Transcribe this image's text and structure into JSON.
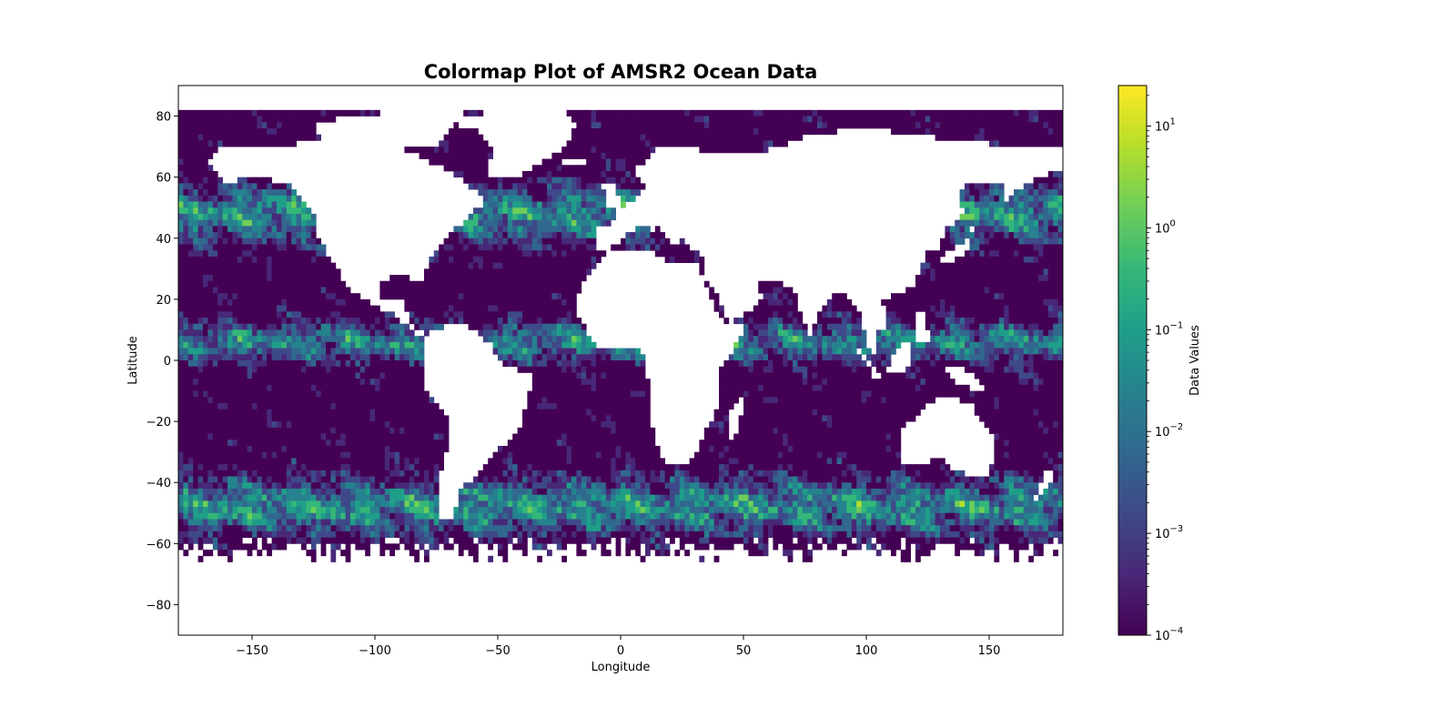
{
  "chart_data": {
    "type": "heatmap",
    "title": "Colormap Plot of AMSR2 Ocean Data",
    "xlabel": "Longitude",
    "ylabel": "Latitude",
    "xlim": [
      -180,
      180
    ],
    "ylim": [
      -90,
      90
    ],
    "xticks": [
      -150,
      -100,
      -50,
      0,
      50,
      100,
      150
    ],
    "xtick_labels": [
      "−150",
      "−100",
      "−50",
      "0",
      "50",
      "100",
      "150"
    ],
    "yticks": [
      80,
      60,
      40,
      20,
      0,
      -20,
      -40,
      -60,
      -80
    ],
    "ytick_labels": [
      "80",
      "60",
      "40",
      "20",
      "0",
      "−20",
      "−40",
      "−60",
      "−80"
    ],
    "grid": false,
    "colormap": "viridis",
    "colorbar": {
      "label": "Data Values",
      "scale": "log",
      "range": [
        0.0001,
        25
      ],
      "ticks": [
        {
          "value": 0.0001,
          "base": "10",
          "exp": "−4"
        },
        {
          "value": 0.001,
          "base": "10",
          "exp": "−3"
        },
        {
          "value": 0.01,
          "base": "10",
          "exp": "−2"
        },
        {
          "value": 0.1,
          "base": "10",
          "exp": "−1"
        },
        {
          "value": 1,
          "base": "10",
          "exp": "0"
        },
        {
          "value": 10,
          "base": "10",
          "exp": "1"
        }
      ]
    },
    "coverage": {
      "ocean_only": true,
      "lat_range": [
        -66,
        82
      ],
      "note_values": "ocean pixels, mostly 1e-4 with filaments of 0.1–3 in storm tracks"
    }
  },
  "colors": {
    "viridis": [
      "#440154",
      "#482878",
      "#3e4989",
      "#31688e",
      "#26828e",
      "#1f9e89",
      "#35b779",
      "#6ece58",
      "#b5de2b",
      "#fde725"
    ],
    "axes": "#000000",
    "background": "#ffffff"
  }
}
